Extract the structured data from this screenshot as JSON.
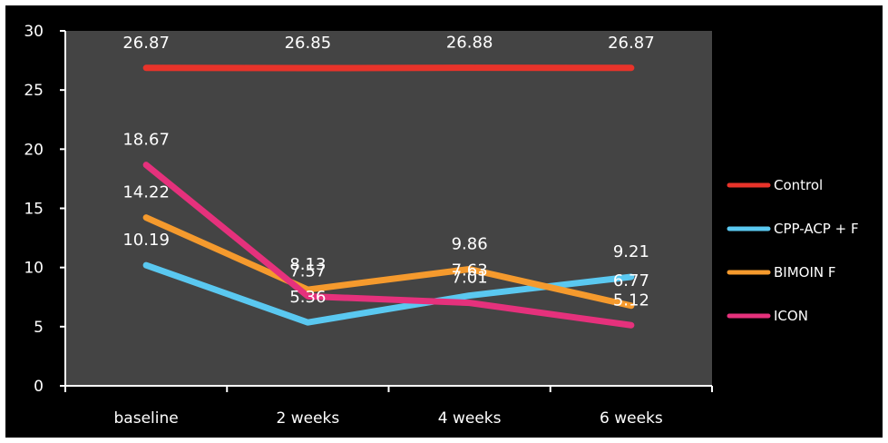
{
  "chart_data": {
    "type": "line",
    "categories": [
      "baseline",
      "2 weeks",
      "4 weeks",
      "6 weeks"
    ],
    "ylim": [
      0,
      30
    ],
    "yticks": [
      0,
      5,
      10,
      15,
      20,
      25,
      30
    ],
    "grid": false,
    "legend_position": "right",
    "background": "#000000",
    "plot_background": "#444444",
    "series": [
      {
        "name": "Control",
        "color": "#e8332a",
        "values": [
          26.87,
          26.85,
          26.88,
          26.87
        ],
        "labels": [
          "26.87",
          "26.85",
          "26.88",
          "26.87"
        ]
      },
      {
        "name": "CPP-ACP + F",
        "color": "#5ac8f0",
        "values": [
          10.19,
          5.36,
          7.63,
          9.21
        ],
        "labels": [
          "10.19",
          "5.36",
          "7.63",
          "9.21"
        ]
      },
      {
        "name": "BIMOIN F",
        "color": "#f59a2d",
        "values": [
          14.22,
          8.13,
          9.86,
          6.77
        ],
        "labels": [
          "14.22",
          "8.13",
          "9.86",
          "6.77"
        ]
      },
      {
        "name": "ICON",
        "color": "#e5317c",
        "values": [
          18.67,
          7.57,
          7.01,
          5.12
        ],
        "labels": [
          "18.67",
          "7.57",
          "7.01",
          "5.12"
        ]
      }
    ]
  }
}
